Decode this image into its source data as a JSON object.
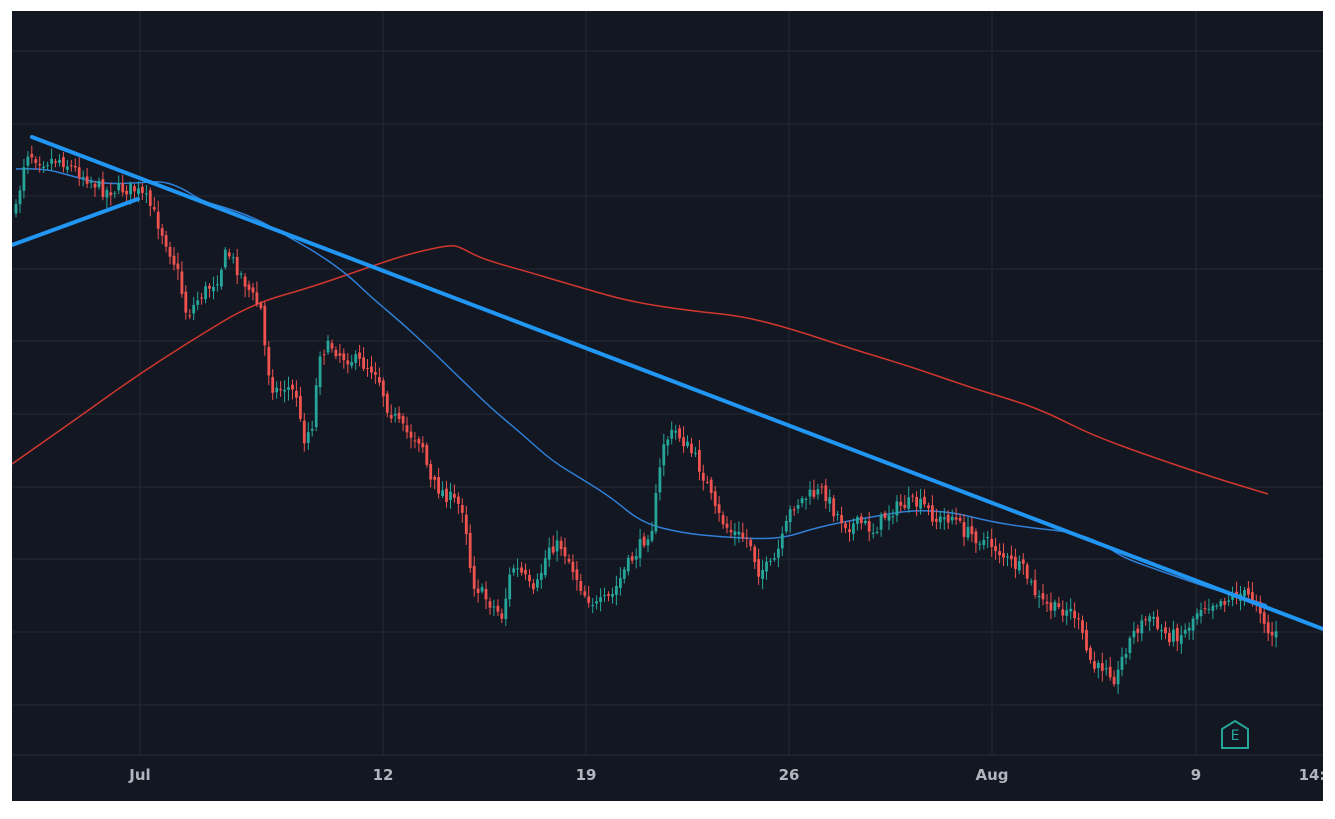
{
  "chart_data": {
    "type": "candlestick",
    "x_tick_labels": [
      "Jul",
      "12",
      "19",
      "26",
      "Aug",
      "9",
      "14:"
    ],
    "grid": true,
    "colors": {
      "background": "#131722",
      "grid": "#242833",
      "up_candle": "#26a69a",
      "down_candle": "#ef5350",
      "trendline": "#2196f3",
      "ma_fast": "#2f7fd6",
      "ma_slow": "#d1372e",
      "axis_text": "#b2b5be"
    },
    "overlays": [
      {
        "kind": "descending-trendline",
        "color": "#2196f3"
      },
      {
        "kind": "ascending-trendline",
        "color": "#2196f3"
      },
      {
        "kind": "moving-average-fast",
        "color": "#2f7fd6"
      },
      {
        "kind": "moving-average-slow",
        "color": "#d1372e"
      }
    ],
    "markers": [
      {
        "kind": "earnings",
        "text": "E",
        "icon": "earnings-icon"
      }
    ]
  }
}
